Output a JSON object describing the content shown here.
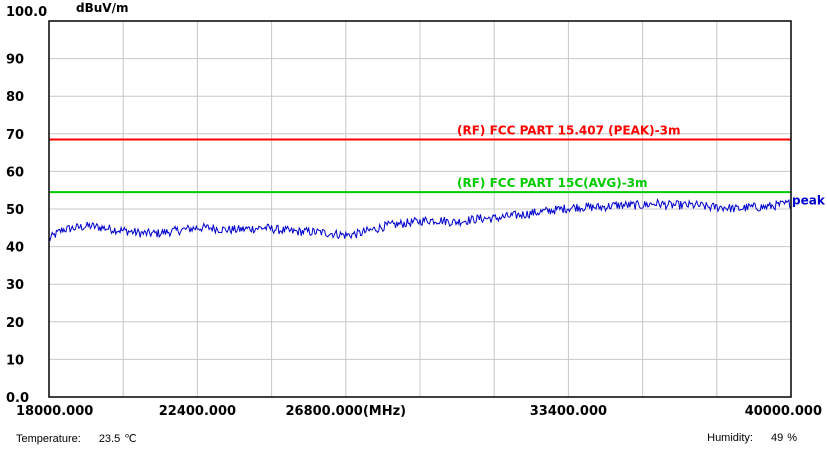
{
  "chart_data": {
    "type": "line",
    "y_axis_top_label": "100.0",
    "y_unit": "dBuV/m",
    "x_unit_label": "(MHz)",
    "ylim": [
      0,
      100
    ],
    "xlim": [
      18000,
      40000
    ],
    "y_ticks": [
      "0.0",
      "10",
      "20",
      "30",
      "40",
      "50",
      "60",
      "70",
      "80",
      "90"
    ],
    "y_tick_values": [
      0,
      10,
      20,
      30,
      40,
      50,
      60,
      70,
      80,
      90
    ],
    "x_ticks": [
      "18000.000",
      "22400.000",
      "26800.000",
      "33400.000",
      "40000.000"
    ],
    "x_tick_values": [
      18000,
      22400,
      26800,
      33400,
      40000
    ],
    "grid": true,
    "limits": [
      {
        "name": "(RF) FCC PART 15.407 (PEAK)-3m",
        "value": 68.5,
        "color": "#ff0000"
      },
      {
        "name": "(RF) FCC PART 15C(AVG)-3m",
        "value": 54.5,
        "color": "#00cc00"
      }
    ],
    "series": [
      {
        "name": "peak",
        "color": "#0000cc",
        "x": [
          18000,
          18400,
          18800,
          19200,
          19600,
          20000,
          20400,
          20800,
          21200,
          21600,
          22000,
          22400,
          22800,
          23200,
          23600,
          24000,
          24400,
          24800,
          25200,
          25600,
          26000,
          26400,
          26800,
          27200,
          27600,
          28000,
          28400,
          28800,
          29200,
          29600,
          30000,
          30400,
          30800,
          31200,
          31600,
          32000,
          32400,
          32800,
          33200,
          33600,
          34000,
          34400,
          34800,
          35200,
          35600,
          36000,
          36400,
          36800,
          37200,
          37600,
          38000,
          38400,
          38800,
          39200,
          39600,
          40000
        ],
        "y": [
          42.0,
          44.5,
          45.0,
          45.5,
          45.0,
          44.5,
          44.0,
          43.5,
          43.5,
          44.0,
          44.5,
          45.0,
          45.0,
          44.5,
          44.5,
          44.8,
          45.0,
          44.5,
          44.0,
          44.0,
          43.8,
          43.5,
          43.0,
          43.5,
          44.5,
          45.5,
          46.0,
          46.5,
          47.0,
          47.0,
          46.5,
          47.0,
          47.5,
          47.5,
          48.0,
          48.5,
          49.0,
          49.5,
          50.0,
          50.5,
          50.5,
          50.5,
          51.0,
          51.0,
          51.0,
          51.5,
          51.0,
          51.0,
          51.0,
          50.5,
          50.5,
          50.0,
          50.5,
          50.5,
          51.0,
          51.5
        ]
      }
    ]
  },
  "footer": {
    "temperature_label": "Temperature:",
    "temperature_value": "23.5",
    "temperature_unit": "℃",
    "humidity_label": "Humidity:",
    "humidity_value": "49",
    "humidity_unit": "%"
  }
}
